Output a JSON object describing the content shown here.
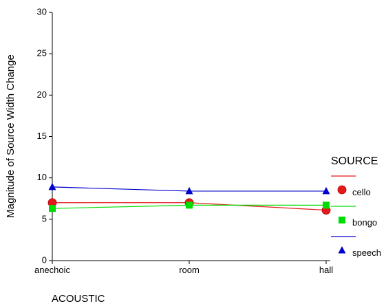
{
  "chart_data": {
    "type": "line",
    "categories": [
      "anechoic",
      "room",
      "hall"
    ],
    "xlabel": "ACOUSTIC",
    "ylabel": "Magnitude of Source Width Change",
    "ylim": [
      0,
      30
    ],
    "yticks": [
      0,
      5,
      10,
      15,
      20,
      25,
      30
    ],
    "grid": false,
    "legend": {
      "title": "SOURCE",
      "placement": "right"
    },
    "series": [
      {
        "name": "cello",
        "values": [
          7.0,
          7.0,
          6.1
        ],
        "color": "#e31a1c",
        "marker": "circle"
      },
      {
        "name": "bongo",
        "values": [
          6.3,
          6.7,
          6.7
        ],
        "color": "#00dd00",
        "marker": "square"
      },
      {
        "name": "speech",
        "values": [
          8.9,
          8.4,
          8.4
        ],
        "color": "#0000cc",
        "marker": "triangle"
      }
    ]
  }
}
